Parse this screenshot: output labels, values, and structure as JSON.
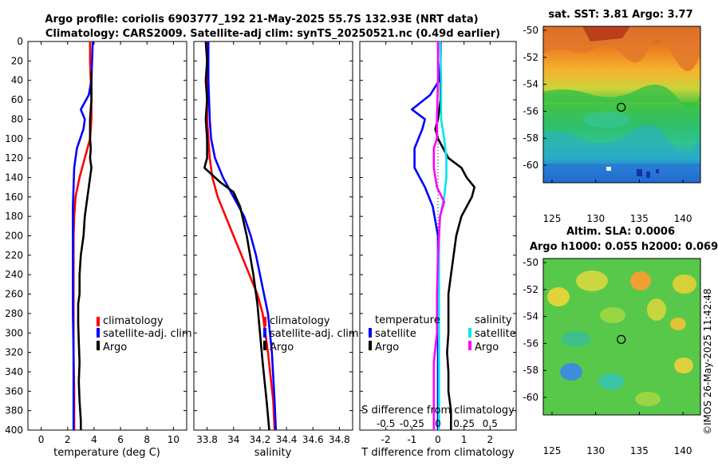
{
  "header": {
    "title_line1": "Argo profile: coriolis 6903777_192 21-May-2025 55.7S 132.93E (NRT data)",
    "title_line2": "Climatology: CARS2009. Satellite-adj clim: synTS_20250521.nc (0.49d earlier)"
  },
  "footer": {
    "credit": "©IMOS 26-May-2025 11:42:48"
  },
  "colors": {
    "climatology": "#ff0000",
    "satellite": "#0000ff",
    "argo": "#000000",
    "sat_salinity": "#00e5ee",
    "argo_salinity": "#ff00ff"
  },
  "chart_data": [
    {
      "id": "temperature",
      "type": "line",
      "xlabel": "temperature (deg C)",
      "ylabel": "",
      "xlim": [
        -1,
        11
      ],
      "ylim": [
        400,
        0
      ],
      "xticks": [
        0,
        2,
        4,
        6,
        8,
        10
      ],
      "xtick_labels": [
        "0",
        "2",
        "4",
        "6",
        "8",
        "10"
      ],
      "yticks": [
        0,
        20,
        40,
        60,
        80,
        100,
        120,
        140,
        160,
        180,
        200,
        220,
        240,
        260,
        280,
        300,
        320,
        340,
        360,
        380,
        400
      ],
      "ytick_labels": [
        "0",
        "20",
        "40",
        "60",
        "80",
        "100",
        "120",
        "140",
        "160",
        "180",
        "200",
        "220",
        "240",
        "260",
        "280",
        "300",
        "320",
        "340",
        "360",
        "380",
        "400"
      ],
      "legend": [
        "climatology",
        "satellite-adj. clim",
        "Argo"
      ],
      "series": [
        {
          "name": "climatology",
          "color": "#ff0000",
          "x": [
            3.7,
            3.7,
            3.75,
            3.8,
            3.8,
            3.7,
            3.3,
            2.9,
            2.6,
            2.5,
            2.45,
            2.45,
            2.45,
            2.45,
            2.5,
            2.5,
            2.5
          ],
          "y": [
            0,
            20,
            40,
            60,
            80,
            100,
            120,
            140,
            160,
            180,
            200,
            240,
            280,
            320,
            360,
            380,
            400
          ]
        },
        {
          "name": "satellite-adj. clim",
          "color": "#0000ff",
          "x": [
            3.9,
            3.85,
            3.8,
            3.6,
            3.0,
            3.3,
            3.2,
            2.7,
            2.5,
            2.45,
            2.4,
            2.4,
            2.4,
            2.4,
            2.45,
            2.45,
            2.45,
            2.45
          ],
          "y": [
            0,
            20,
            40,
            55,
            70,
            80,
            90,
            110,
            130,
            150,
            170,
            200,
            240,
            280,
            320,
            360,
            380,
            400
          ]
        },
        {
          "name": "Argo",
          "color": "#000000",
          "x": [
            3.8,
            3.8,
            3.8,
            3.7,
            3.7,
            3.75,
            3.7,
            3.8,
            3.7,
            3.6,
            3.5,
            3.3,
            3.2,
            3.0,
            2.9,
            2.9,
            2.8,
            2.8,
            2.85,
            2.9,
            2.85,
            2.9,
            3.0,
            3.0
          ],
          "y": [
            30,
            40,
            60,
            80,
            100,
            110,
            120,
            130,
            140,
            150,
            160,
            180,
            200,
            220,
            240,
            260,
            270,
            290,
            310,
            330,
            350,
            370,
            390,
            400
          ]
        }
      ]
    },
    {
      "id": "salinity",
      "type": "line",
      "xlabel": "salinity",
      "ylabel": "",
      "xlim": [
        33.7,
        34.9
      ],
      "ylim": [
        400,
        0
      ],
      "xticks": [
        33.8,
        34,
        34.2,
        34.4,
        34.6,
        34.8
      ],
      "xtick_labels": [
        "33.8",
        "34",
        "34.2",
        "34.4",
        "34.6",
        "34.8"
      ],
      "legend": [
        "climatology",
        "satellite-adj. clim",
        "Argo"
      ],
      "series": [
        {
          "name": "climatology",
          "color": "#ff0000",
          "x": [
            33.8,
            33.8,
            33.8,
            33.81,
            33.82,
            33.84,
            33.88,
            33.94,
            34.0,
            34.06,
            34.12,
            34.18,
            34.22,
            34.26,
            34.3,
            34.31
          ],
          "y": [
            0,
            40,
            80,
            100,
            120,
            140,
            160,
            180,
            200,
            220,
            240,
            260,
            280,
            320,
            370,
            400
          ]
        },
        {
          "name": "satellite-adj. clim",
          "color": "#0000ff",
          "x": [
            33.81,
            33.81,
            33.82,
            33.83,
            33.86,
            33.92,
            34.0,
            34.08,
            34.13,
            34.17,
            34.2,
            34.23,
            34.26,
            34.29,
            34.31,
            34.32
          ],
          "y": [
            0,
            40,
            80,
            100,
            120,
            140,
            160,
            180,
            200,
            220,
            240,
            260,
            280,
            320,
            370,
            400
          ]
        },
        {
          "name": "Argo",
          "color": "#000000",
          "x": [
            33.79,
            33.8,
            33.79,
            33.8,
            33.79,
            33.8,
            33.8,
            33.79,
            33.78,
            33.9,
            34.0,
            34.05,
            34.1,
            34.15,
            34.18,
            34.2,
            34.22,
            34.25,
            34.27
          ],
          "y": [
            0,
            20,
            40,
            60,
            80,
            100,
            120,
            125,
            130,
            145,
            155,
            170,
            200,
            240,
            270,
            300,
            330,
            370,
            400
          ]
        }
      ]
    },
    {
      "id": "differences",
      "type": "line",
      "xlabel": "T difference from climatology",
      "xlabel_top": "S difference from climatology",
      "xlim": [
        -3,
        3
      ],
      "ylim": [
        400,
        0
      ],
      "xticks": [
        -2,
        -1,
        0,
        1,
        2
      ],
      "xtick_labels": [
        "-2",
        "-1",
        "0",
        "1",
        "2"
      ],
      "s_ticks": [
        -0.5,
        -0.25,
        0,
        0.25,
        0.5
      ],
      "s_tick_labels": [
        "-0.5",
        "-0.25",
        "0",
        "0.25",
        "0.5"
      ],
      "legend_temperature_title": "temperature",
      "legend_salinity_title": "salinity",
      "legend_temperature": [
        "satellite",
        "Argo"
      ],
      "legend_salinity": [
        "satellite",
        "Argo"
      ],
      "series": [
        {
          "name": "temperature satellite",
          "color": "#0000ff",
          "x": [
            0.1,
            0.1,
            0.05,
            -0.3,
            -1.0,
            -0.5,
            -0.6,
            -0.9,
            -0.9,
            -0.5,
            -0.2,
            0.0,
            0.0,
            0.0,
            0.0,
            0.0,
            0.0,
            0.0
          ],
          "y": [
            0,
            20,
            40,
            55,
            70,
            80,
            90,
            110,
            130,
            150,
            170,
            200,
            240,
            280,
            320,
            360,
            380,
            400
          ]
        },
        {
          "name": "temperature Argo",
          "color": "#000000",
          "x": [
            0.1,
            0.1,
            0.1,
            0.0,
            -0.1,
            0.0,
            0.4,
            0.9,
            1.1,
            1.4,
            1.3,
            0.9,
            0.7,
            0.6,
            0.5,
            0.4,
            0.4,
            0.4,
            0.35,
            0.4,
            0.4,
            0.5,
            0.5
          ],
          "y": [
            30,
            40,
            60,
            80,
            90,
            100,
            120,
            130,
            140,
            150,
            160,
            180,
            200,
            220,
            240,
            260,
            280,
            300,
            320,
            340,
            360,
            380,
            400
          ]
        },
        {
          "name": "salinity satellite",
          "color": "#00e5ee",
          "x": [
            0.02,
            0.03,
            0.03,
            0.06,
            0.08,
            0.08,
            0.06,
            0.02,
            0.01,
            0.01,
            0.01,
            0.01,
            0.01
          ],
          "y": [
            0,
            40,
            80,
            100,
            120,
            140,
            160,
            180,
            200,
            240,
            300,
            350,
            400
          ]
        },
        {
          "name": "salinity Argo",
          "color": "#ff00ff",
          "x": [
            0.0,
            0.0,
            -0.01,
            -0.01,
            -0.04,
            -0.04,
            -0.01,
            0.06,
            0.02,
            0.0,
            -0.01,
            -0.01,
            -0.04,
            -0.04,
            -0.04
          ],
          "y": [
            0,
            40,
            80,
            100,
            110,
            130,
            150,
            165,
            180,
            220,
            260,
            300,
            330,
            370,
            400
          ]
        }
      ]
    },
    {
      "id": "sst-map",
      "type": "heatmap",
      "title": "sat. SST: 3.81 Argo: 3.77",
      "xlim": [
        124,
        142
      ],
      "ylim": [
        -61.3,
        -49.7
      ],
      "xticks": [
        125,
        130,
        135,
        140
      ],
      "xtick_labels": [
        "125",
        "130",
        "135",
        "140"
      ],
      "yticks": [
        -50,
        -52,
        -54,
        -56,
        -58,
        -60
      ],
      "ytick_labels": [
        "-50",
        "-52",
        "-54",
        "-56",
        "-58",
        "-60"
      ],
      "profile_location": [
        132.93,
        -55.7
      ]
    },
    {
      "id": "sla-map",
      "type": "heatmap",
      "title_line1": "Altim. SLA: 0.0006",
      "title_line2": "Argo h1000: 0.055 h2000: 0.069",
      "xlim": [
        124,
        142
      ],
      "ylim": [
        -61.3,
        -49.7
      ],
      "xticks": [
        125,
        130,
        135,
        140
      ],
      "xtick_labels": [
        "125",
        "130",
        "135",
        "140"
      ],
      "yticks": [
        -50,
        -52,
        -54,
        -56,
        -58,
        -60
      ],
      "ytick_labels": [
        "-50",
        "-52",
        "-54",
        "-56",
        "-58",
        "-60"
      ],
      "profile_location": [
        132.93,
        -55.7
      ]
    }
  ]
}
